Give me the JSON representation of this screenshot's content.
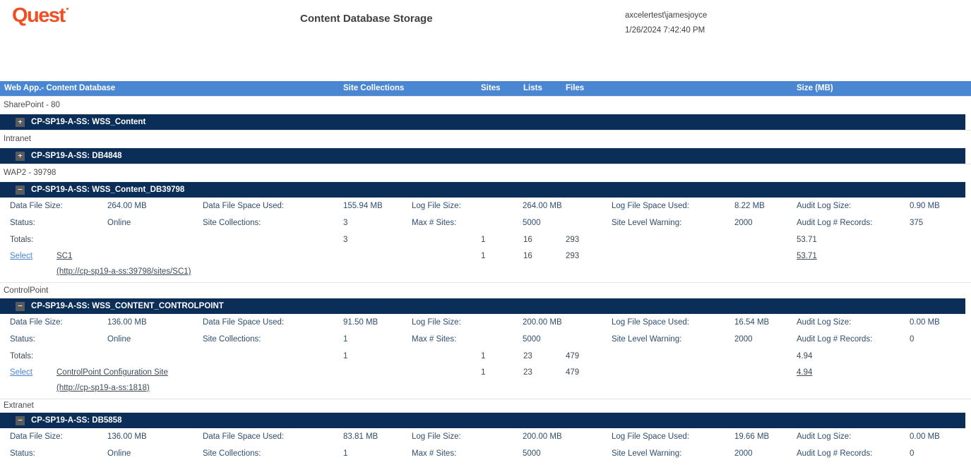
{
  "header": {
    "logo_text": "Quest",
    "title": "Content Database Storage",
    "user": "axcelertest\\jamesjoyce",
    "timestamp": "1/26/2024 7:42:40 PM"
  },
  "colors": {
    "brand_orange": "#f04e23",
    "column_header_blue": "#4a86d2",
    "database_bar_navy": "#0b2e58",
    "link_blue": "#4a86d2"
  },
  "table": {
    "columns": {
      "webapp": "Web App.- Content Database",
      "site_collections": "Site Collections",
      "sites": "Sites",
      "lists": "Lists",
      "files": "Files",
      "size": "Size (MB)"
    },
    "sections": [
      {
        "webapp": "SharePoint - 80",
        "database": "CP-SP19-A-SS: WSS_Content",
        "expand_icon": "+"
      },
      {
        "webapp": "Intranet",
        "database": "CP-SP19-A-SS: DB4848",
        "expand_icon": "+"
      },
      {
        "webapp": "WAP2 - 39798",
        "database": "CP-SP19-A-SS: WSS_Content_DB39798",
        "expand_icon": "−",
        "stats1": [
          {
            "label": "Data File Size:",
            "value": "264.00 MB"
          },
          {
            "label": "Data File Space Used:",
            "value": "155.94 MB"
          },
          {
            "label": "Log File Size:",
            "value": "264.00 MB"
          },
          {
            "label": "Log File Space Used:",
            "value": "8.22 MB"
          },
          {
            "label": "Audit Log Size:",
            "value": "0.90 MB"
          }
        ],
        "stats2": [
          {
            "label": "Status:",
            "value": "Online"
          },
          {
            "label": "Site Collections:",
            "value": "3"
          },
          {
            "label": "Max # Sites:",
            "value": "5000"
          },
          {
            "label": "Site Level Warning:",
            "value": "2000"
          },
          {
            "label": "Audit Log # Records:",
            "value": "375"
          }
        ],
        "totals": {
          "label": "Totals:",
          "site_collections": "3",
          "sites": "1",
          "lists": "16",
          "files": "293",
          "size": "53.71"
        },
        "site": {
          "action": "Select",
          "name": "SC1",
          "url": "(http://cp-sp19-a-ss:39798/sites/SC1)",
          "sites": "1",
          "lists": "16",
          "files": "293",
          "size": "53.71"
        }
      },
      {
        "webapp": "ControlPoint",
        "database": "CP-SP19-A-SS: WSS_CONTENT_CONTROLPOINT",
        "expand_icon": "−",
        "stats1": [
          {
            "label": "Data File Size:",
            "value": "136.00 MB"
          },
          {
            "label": "Data File Space Used:",
            "value": "91.50 MB"
          },
          {
            "label": "Log File Size:",
            "value": "200.00 MB"
          },
          {
            "label": "Log File Space Used:",
            "value": "16.54 MB"
          },
          {
            "label": "Audit Log Size:",
            "value": "0.00 MB"
          }
        ],
        "stats2": [
          {
            "label": "Status:",
            "value": "Online"
          },
          {
            "label": "Site Collections:",
            "value": "1"
          },
          {
            "label": "Max # Sites:",
            "value": "5000"
          },
          {
            "label": "Site Level Warning:",
            "value": "2000"
          },
          {
            "label": "Audit Log # Records:",
            "value": "0"
          }
        ],
        "totals": {
          "label": "Totals:",
          "site_collections": "1",
          "sites": "1",
          "lists": "23",
          "files": "479",
          "size": "4.94"
        },
        "site": {
          "action": "Select",
          "name": "ControlPoint Configuration Site",
          "url": "(http://cp-sp19-a-ss:1818)",
          "sites": "1",
          "lists": "23",
          "files": "479",
          "size": "4.94"
        }
      },
      {
        "webapp": "Extranet",
        "database": "CP-SP19-A-SS: DB5858",
        "expand_icon": "−",
        "stats1": [
          {
            "label": "Data File Size:",
            "value": "136.00 MB"
          },
          {
            "label": "Data File Space Used:",
            "value": "83.81 MB"
          },
          {
            "label": "Log File Size:",
            "value": "200.00 MB"
          },
          {
            "label": "Log File Space Used:",
            "value": "19.66 MB"
          },
          {
            "label": "Audit Log Size:",
            "value": "0.00 MB"
          }
        ],
        "stats2": [
          {
            "label": "Status:",
            "value": "Online"
          },
          {
            "label": "Site Collections:",
            "value": "1"
          },
          {
            "label": "Max # Sites:",
            "value": "5000"
          },
          {
            "label": "Site Level Warning:",
            "value": "2000"
          },
          {
            "label": "Audit Log # Records:",
            "value": "0"
          }
        ]
      }
    ]
  }
}
